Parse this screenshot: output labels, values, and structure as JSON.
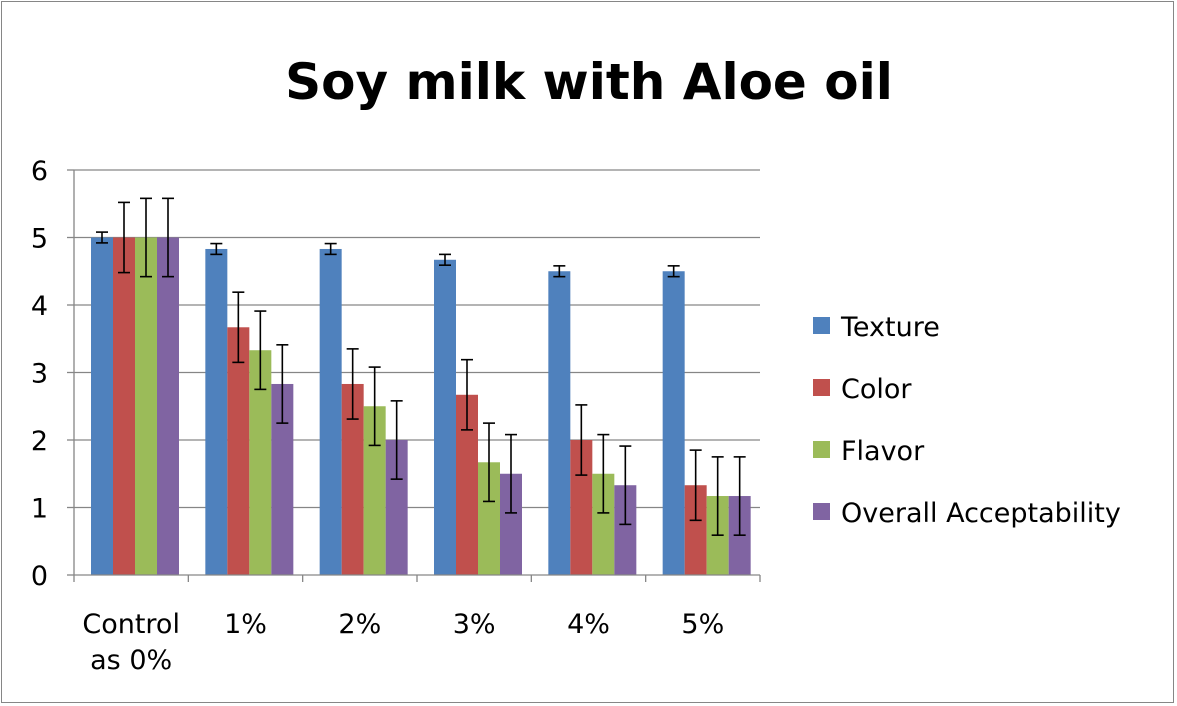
{
  "chart_data": {
    "type": "bar",
    "title": "Soy milk with Aloe oil",
    "xlabel": "",
    "ylabel": "",
    "categories": [
      [
        "Control",
        "as 0%"
      ],
      [
        "1%"
      ],
      [
        "2%"
      ],
      [
        "3%"
      ],
      [
        "4%"
      ],
      [
        "5%"
      ]
    ],
    "ylim": [
      0,
      6
    ],
    "yticks": [
      "0",
      "1",
      "2",
      "3",
      "4",
      "5",
      "6"
    ],
    "grid": true,
    "legend_position": "right",
    "series": [
      {
        "name": "Texture",
        "color": "#4F81BD",
        "values": [
          5.0,
          4.83,
          4.83,
          4.67,
          4.5,
          4.5
        ],
        "errors": [
          0.08,
          0.08,
          0.08,
          0.08,
          0.08,
          0.08
        ]
      },
      {
        "name": "Color",
        "color": "#C0504D",
        "values": [
          5.0,
          3.67,
          2.83,
          2.67,
          2.0,
          1.33
        ],
        "errors": [
          0.52,
          0.52,
          0.52,
          0.52,
          0.52,
          0.52
        ]
      },
      {
        "name": "Flavor",
        "color": "#9BBB59",
        "values": [
          5.0,
          3.33,
          2.5,
          1.67,
          1.5,
          1.17
        ],
        "errors": [
          0.58,
          0.58,
          0.58,
          0.58,
          0.58,
          0.58
        ]
      },
      {
        "name": "Overall Acceptability",
        "color": "#8064A2",
        "values": [
          5.0,
          2.83,
          2.0,
          1.5,
          1.33,
          1.17
        ],
        "errors": [
          0.58,
          0.58,
          0.58,
          0.58,
          0.58,
          0.58
        ]
      }
    ]
  }
}
